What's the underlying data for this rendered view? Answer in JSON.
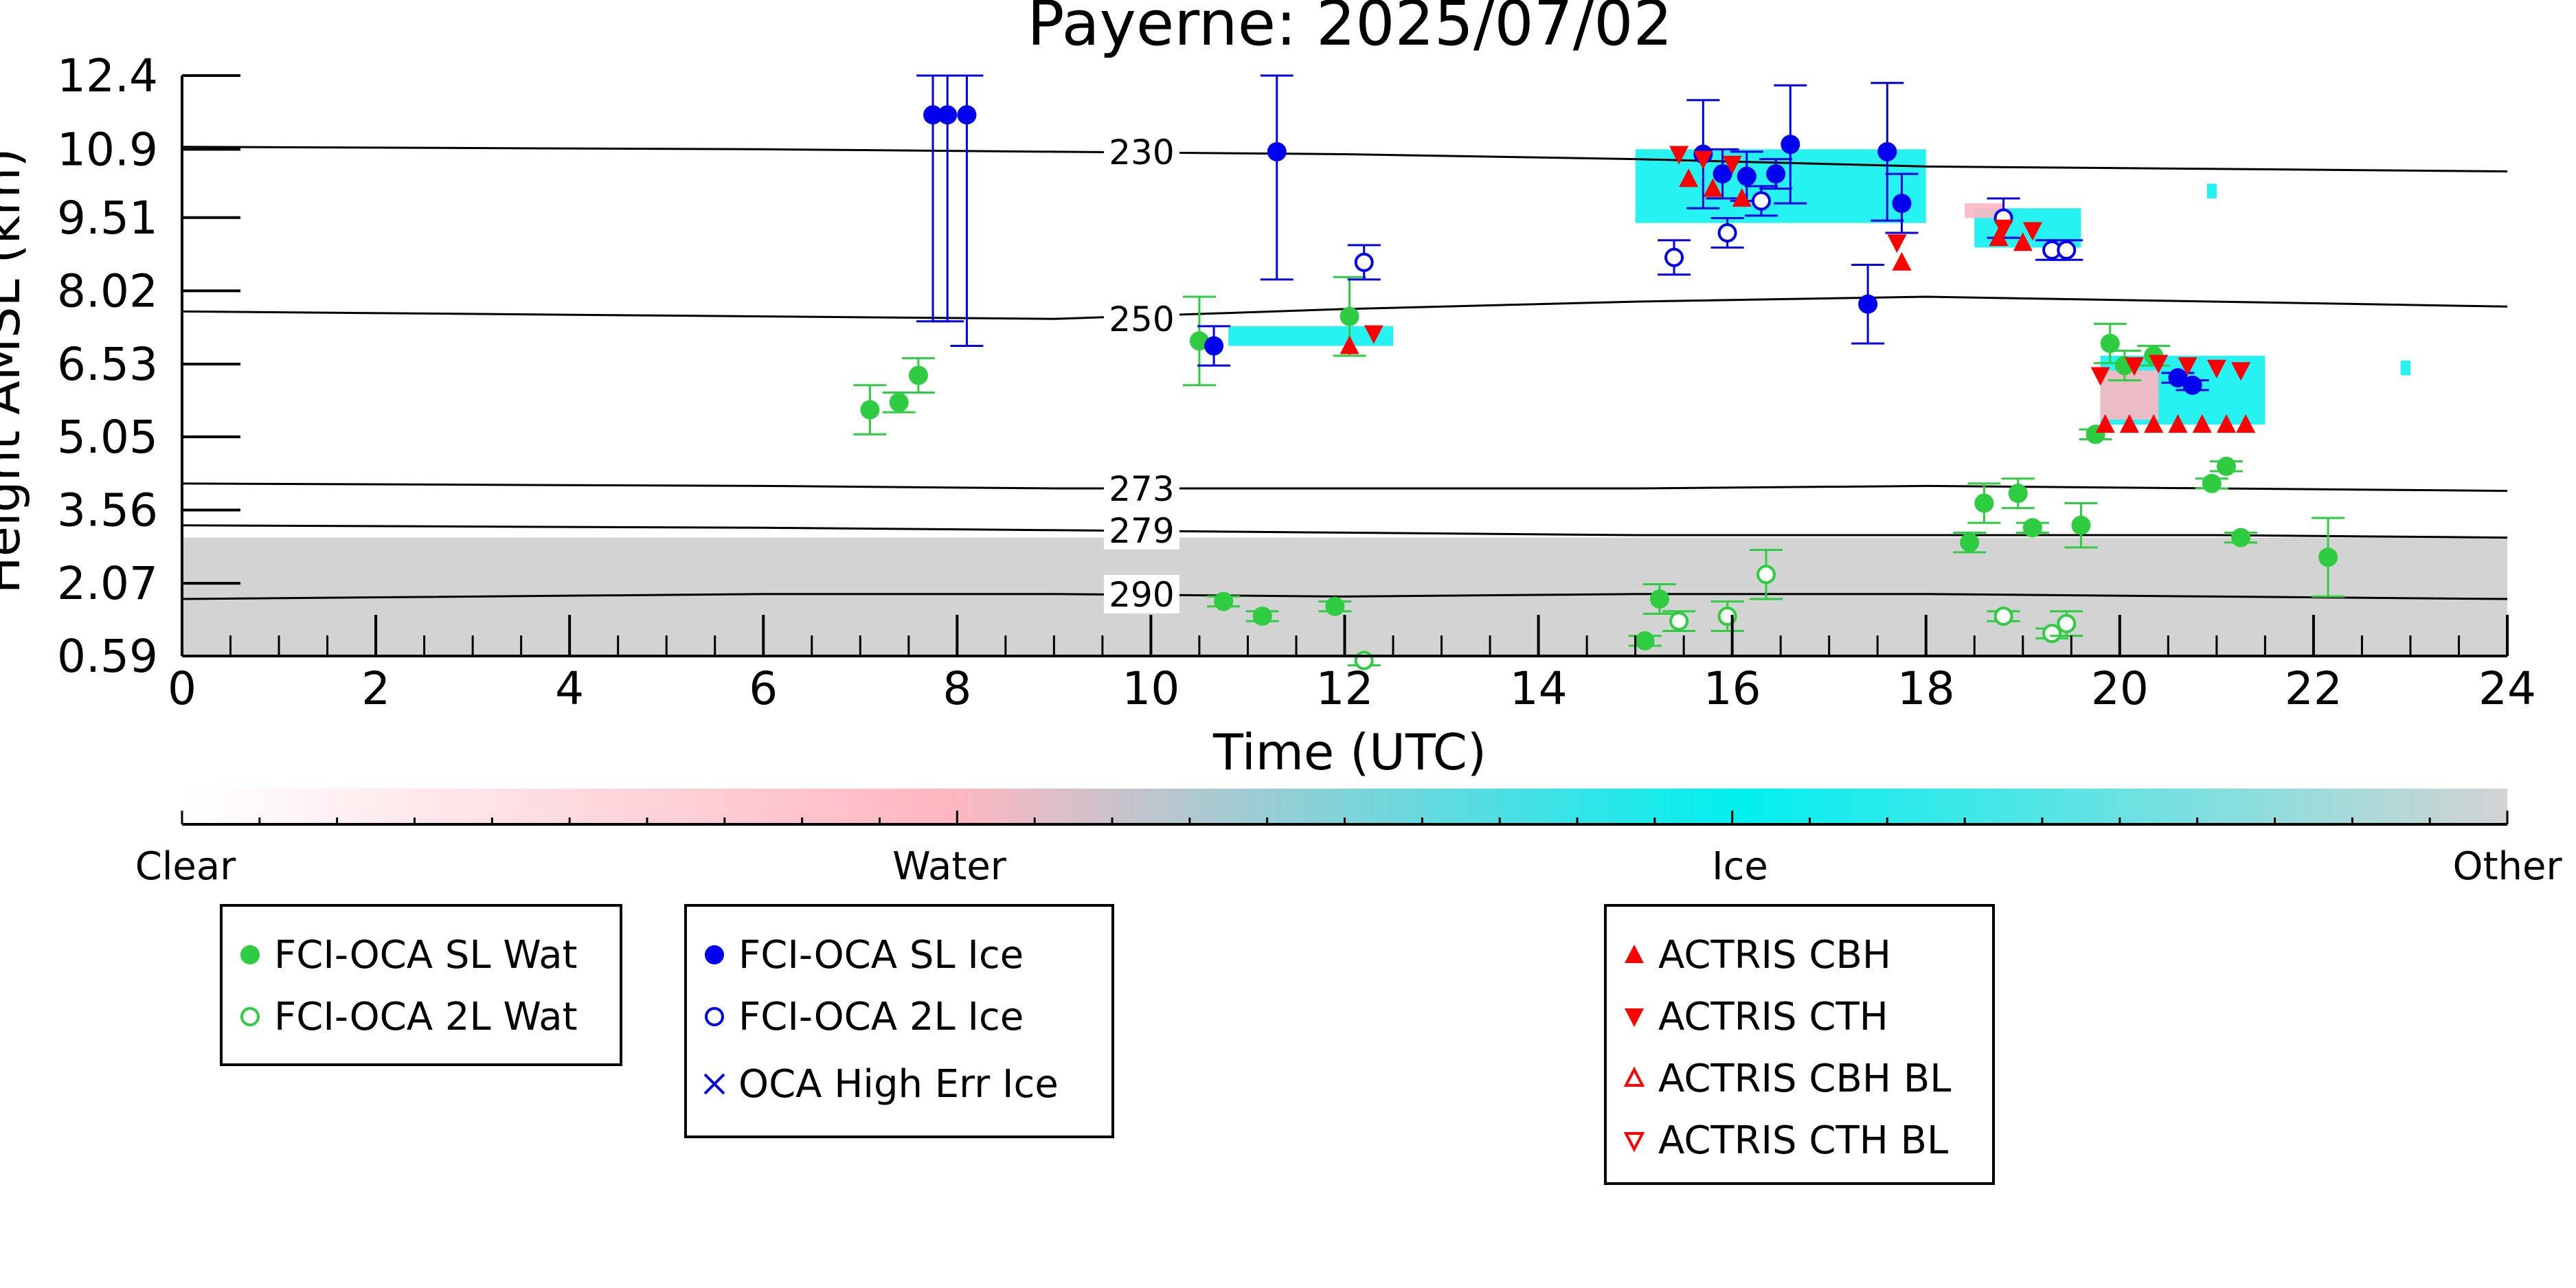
{
  "chart_data": {
    "type": "scatter",
    "title": "Payerne: 2025/07/02",
    "xlabel": "Time (UTC)",
    "ylabel": "Height AMSL (km)",
    "xlim": [
      0,
      24
    ],
    "ylim": [
      0.59,
      12.4
    ],
    "x_ticks": [
      0,
      2,
      4,
      6,
      8,
      10,
      12,
      14,
      16,
      18,
      20,
      22,
      24
    ],
    "y_ticks": [
      0.59,
      2.07,
      3.56,
      5.05,
      6.53,
      8.02,
      9.51,
      10.9,
      12.4
    ],
    "y_tick_labels": [
      "0.59",
      "2.07",
      "3.56",
      "5.05",
      "6.53",
      "8.02",
      "9.51",
      "10.9",
      "12.4"
    ],
    "colors": {
      "water": "#2ecc40",
      "ice": "#0000ee",
      "actris": "#ff0000",
      "background_cloud": "#d3d3d3",
      "mask_ice": "#00f0f0",
      "mask_water": "#ffb6c1"
    },
    "isotherms": [
      {
        "label": "230",
        "points": [
          [
            0,
            10.95
          ],
          [
            6,
            10.9
          ],
          [
            9,
            10.85
          ],
          [
            12,
            10.8
          ],
          [
            15,
            10.7
          ],
          [
            18,
            10.55
          ],
          [
            21,
            10.5
          ],
          [
            24,
            10.45
          ]
        ]
      },
      {
        "label": "250",
        "points": [
          [
            0,
            7.6
          ],
          [
            6,
            7.5
          ],
          [
            9,
            7.45
          ],
          [
            12,
            7.65
          ],
          [
            15,
            7.8
          ],
          [
            18,
            7.9
          ],
          [
            21,
            7.8
          ],
          [
            24,
            7.7
          ]
        ]
      },
      {
        "label": "273",
        "points": [
          [
            0,
            4.1
          ],
          [
            6,
            4.05
          ],
          [
            9,
            4.0
          ],
          [
            12,
            4.0
          ],
          [
            15,
            4.0
          ],
          [
            18,
            4.05
          ],
          [
            21,
            4.0
          ],
          [
            24,
            3.95
          ]
        ]
      },
      {
        "label": "279",
        "points": [
          [
            0,
            3.25
          ],
          [
            6,
            3.2
          ],
          [
            9,
            3.15
          ],
          [
            12,
            3.1
          ],
          [
            15,
            3.05
          ],
          [
            18,
            3.05
          ],
          [
            21,
            3.05
          ],
          [
            24,
            3.0
          ]
        ]
      },
      {
        "label": "290",
        "points": [
          [
            0,
            1.75
          ],
          [
            6,
            1.85
          ],
          [
            9,
            1.85
          ],
          [
            12,
            1.8
          ],
          [
            15,
            1.85
          ],
          [
            18,
            1.85
          ],
          [
            21,
            1.8
          ],
          [
            24,
            1.75
          ]
        ]
      }
    ],
    "isotherm_label_x": 9.55,
    "series": [
      {
        "name": "FCI-OCA SL Wat",
        "marker": "filled-circle",
        "color": "#2ecc40",
        "points": [
          [
            7.1,
            5.6,
            0.5
          ],
          [
            7.4,
            5.75,
            0.2
          ],
          [
            7.6,
            6.3,
            0.35
          ],
          [
            10.5,
            7.0,
            0.9
          ],
          [
            12.05,
            7.5,
            0.8
          ],
          [
            10.75,
            1.7,
            0.1
          ],
          [
            11.15,
            1.4,
            0.1
          ],
          [
            11.9,
            1.6,
            0.1
          ],
          [
            15.1,
            0.9,
            0.1
          ],
          [
            15.25,
            1.75,
            0.3
          ],
          [
            18.45,
            2.9,
            0.2
          ],
          [
            18.6,
            3.7,
            0.4
          ],
          [
            18.95,
            3.9,
            0.3
          ],
          [
            19.1,
            3.2,
            0.1
          ],
          [
            19.6,
            3.25,
            0.45
          ],
          [
            19.75,
            5.1,
            0.1
          ],
          [
            19.9,
            6.95,
            0.4
          ],
          [
            20.05,
            6.5,
            0.3
          ],
          [
            20.35,
            6.7,
            0.2
          ],
          [
            20.95,
            4.1,
            0.1
          ],
          [
            21.1,
            4.45,
            0.1
          ],
          [
            21.25,
            3.0,
            0.1
          ],
          [
            22.15,
            2.6,
            0.8
          ]
        ]
      },
      {
        "name": "FCI-OCA 2L Wat",
        "marker": "open-circle",
        "color": "#2ecc40",
        "points": [
          [
            12.2,
            0.5,
            0.1
          ],
          [
            15.45,
            1.3,
            0.2
          ],
          [
            15.95,
            1.4,
            0.3
          ],
          [
            16.35,
            2.25,
            0.5
          ],
          [
            18.8,
            1.4,
            0.1
          ],
          [
            19.3,
            1.05,
            0.1
          ],
          [
            19.45,
            1.25,
            0.25
          ]
        ]
      },
      {
        "name": "FCI-OCA SL Ice",
        "marker": "filled-circle",
        "color": "#0000ee",
        "points": [
          [
            7.75,
            11.6,
            4.2
          ],
          [
            7.9,
            11.6,
            4.2
          ],
          [
            8.1,
            11.6,
            4.7
          ],
          [
            10.65,
            6.9,
            0.4
          ],
          [
            11.3,
            10.85,
            2.6
          ],
          [
            15.7,
            10.8,
            1.1
          ],
          [
            15.9,
            10.4,
            0.5
          ],
          [
            16.15,
            10.35,
            0.5
          ],
          [
            16.45,
            10.4,
            0.3
          ],
          [
            16.6,
            11.0,
            1.2
          ],
          [
            17.4,
            7.75,
            0.8
          ],
          [
            17.6,
            10.85,
            1.4
          ],
          [
            17.75,
            9.8,
            0.6
          ],
          [
            20.6,
            6.25,
            0.1
          ],
          [
            20.75,
            6.1,
            0.1
          ]
        ]
      },
      {
        "name": "FCI-OCA 2L Ice",
        "marker": "open-circle",
        "color": "#0000ee",
        "points": [
          [
            12.2,
            8.6,
            0.35
          ],
          [
            15.4,
            8.7,
            0.35
          ],
          [
            15.95,
            9.2,
            0.3
          ],
          [
            16.3,
            9.85,
            0.3
          ],
          [
            18.8,
            9.5,
            0.4
          ],
          [
            19.3,
            8.85,
            0.2
          ],
          [
            19.45,
            8.85,
            0.2
          ]
        ]
      },
      {
        "name": "OCA High Err Ice",
        "marker": "x",
        "color": "#0000ee",
        "points": []
      },
      {
        "name": "ACTRIS CBH",
        "marker": "triangle-up",
        "color": "#ff0000",
        "points": [
          [
            12.05,
            6.9
          ],
          [
            15.55,
            10.3
          ],
          [
            15.8,
            10.1
          ],
          [
            16.1,
            9.9
          ],
          [
            17.75,
            8.6
          ],
          [
            18.75,
            9.1
          ],
          [
            19.0,
            9.0
          ],
          [
            19.85,
            5.3
          ],
          [
            20.1,
            5.3
          ],
          [
            20.35,
            5.3
          ],
          [
            20.6,
            5.3
          ],
          [
            20.85,
            5.3
          ],
          [
            21.1,
            5.3
          ],
          [
            21.3,
            5.3
          ]
        ]
      },
      {
        "name": "ACTRIS CTH",
        "marker": "triangle-down",
        "color": "#ff0000",
        "points": [
          [
            12.3,
            7.15
          ],
          [
            15.45,
            10.8
          ],
          [
            15.7,
            10.7
          ],
          [
            16.0,
            10.6
          ],
          [
            17.7,
            9.0
          ],
          [
            18.8,
            9.3
          ],
          [
            19.1,
            9.25
          ],
          [
            19.8,
            6.3
          ],
          [
            20.15,
            6.5
          ],
          [
            20.4,
            6.55
          ],
          [
            20.7,
            6.5
          ],
          [
            21.0,
            6.45
          ],
          [
            21.25,
            6.4
          ]
        ]
      },
      {
        "name": "ACTRIS CBH BL",
        "marker": "open-triangle-up",
        "color": "#ff0000",
        "points": []
      },
      {
        "name": "ACTRIS CTH BL",
        "marker": "open-triangle-down",
        "color": "#ff0000",
        "points": []
      }
    ],
    "cloud_mask": {
      "other_band": [
        0.59,
        3.0
      ],
      "ice_regions": [
        [
          10.8,
          12.5,
          6.9,
          7.3
        ],
        [
          15.0,
          18.0,
          9.4,
          10.9
        ],
        [
          18.5,
          19.6,
          8.9,
          9.7
        ],
        [
          19.8,
          21.5,
          5.3,
          6.7
        ],
        [
          20.9,
          21.0,
          9.9,
          10.2
        ],
        [
          22.9,
          23.0,
          6.3,
          6.6
        ]
      ],
      "water_regions": [
        [
          18.4,
          18.8,
          9.5,
          9.8
        ],
        [
          19.8,
          20.4,
          5.4,
          6.4
        ]
      ]
    },
    "colorbar": {
      "labels": [
        "Clear",
        "Water",
        "Ice",
        "Other"
      ],
      "stops": [
        "#ffffff",
        "#ffb6c1",
        "#00f0f0",
        "#d3d3d3"
      ]
    },
    "legend": {
      "placement": "below",
      "groups": [
        [
          "FCI-OCA SL Wat",
          "FCI-OCA 2L Wat"
        ],
        [
          "FCI-OCA SL Ice",
          "FCI-OCA 2L Ice",
          "OCA High Err Ice"
        ],
        [
          "ACTRIS CBH",
          "ACTRIS CTH",
          "ACTRIS CBH BL",
          "ACTRIS CTH BL"
        ]
      ]
    }
  }
}
